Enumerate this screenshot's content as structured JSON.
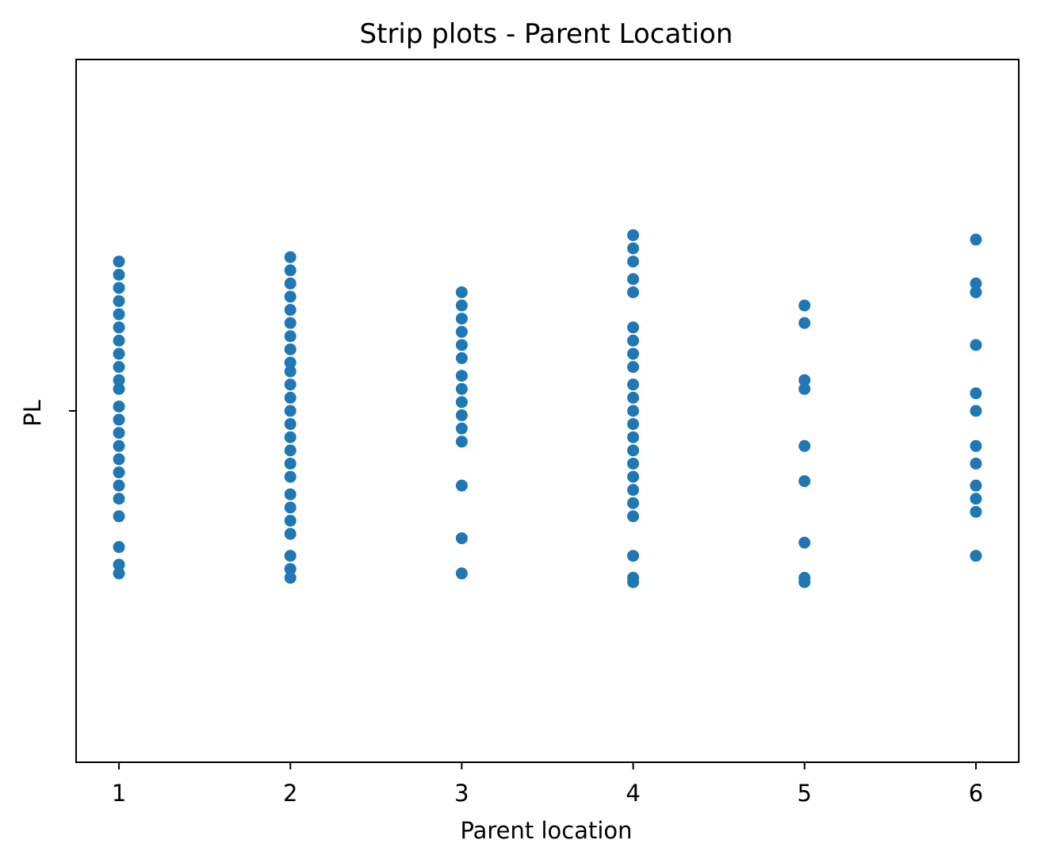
{
  "chart_data": {
    "type": "scatter",
    "title": "Strip plots - Parent Location",
    "xlabel": "Parent location",
    "ylabel": "PL",
    "categories": [
      "1",
      "2",
      "3",
      "4",
      "5",
      "6"
    ],
    "x_ticks": [
      1,
      2,
      3,
      4,
      5,
      6
    ],
    "y_tick_labels": [
      ""
    ],
    "xlim": [
      0.75,
      6.25
    ],
    "jitter_range": [
      -0.4,
      0.4
    ],
    "marker_color": "#1f77b4",
    "grid": false,
    "legend": "none",
    "points": [
      {
        "x": 1,
        "jitter": [
          0.17,
          0.155,
          0.14,
          0.125,
          0.11,
          0.095,
          0.08,
          0.065,
          0.05,
          0.035,
          0.025,
          0.005,
          -0.01,
          -0.025,
          -0.04,
          -0.055,
          -0.07,
          -0.085,
          -0.1,
          -0.12,
          -0.155,
          -0.175,
          -0.185
        ]
      },
      {
        "x": 2,
        "jitter": [
          0.175,
          0.16,
          0.145,
          0.13,
          0.115,
          0.1,
          0.085,
          0.07,
          0.055,
          0.045,
          0.03,
          0.015,
          0.0,
          -0.015,
          -0.03,
          -0.045,
          -0.06,
          -0.075,
          -0.095,
          -0.11,
          -0.125,
          -0.14,
          -0.165,
          -0.18,
          -0.19
        ]
      },
      {
        "x": 3,
        "jitter": [
          0.135,
          0.12,
          0.105,
          0.09,
          0.075,
          0.06,
          0.04,
          0.025,
          0.01,
          -0.005,
          -0.02,
          -0.035,
          -0.085,
          -0.145,
          -0.185
        ]
      },
      {
        "x": 4,
        "jitter": [
          0.2,
          0.185,
          0.17,
          0.15,
          0.135,
          0.095,
          0.08,
          0.065,
          0.05,
          0.03,
          0.015,
          0.0,
          -0.015,
          -0.03,
          -0.045,
          -0.06,
          -0.075,
          -0.09,
          -0.105,
          -0.12,
          -0.165,
          -0.19,
          -0.195
        ]
      },
      {
        "x": 5,
        "jitter": [
          0.12,
          0.1,
          0.035,
          0.025,
          -0.04,
          -0.08,
          -0.15,
          -0.19,
          -0.195
        ]
      },
      {
        "x": 6,
        "jitter": [
          0.195,
          0.145,
          0.135,
          0.075,
          0.02,
          0.0,
          -0.04,
          -0.06,
          -0.085,
          -0.1,
          -0.115,
          -0.165
        ]
      }
    ]
  }
}
